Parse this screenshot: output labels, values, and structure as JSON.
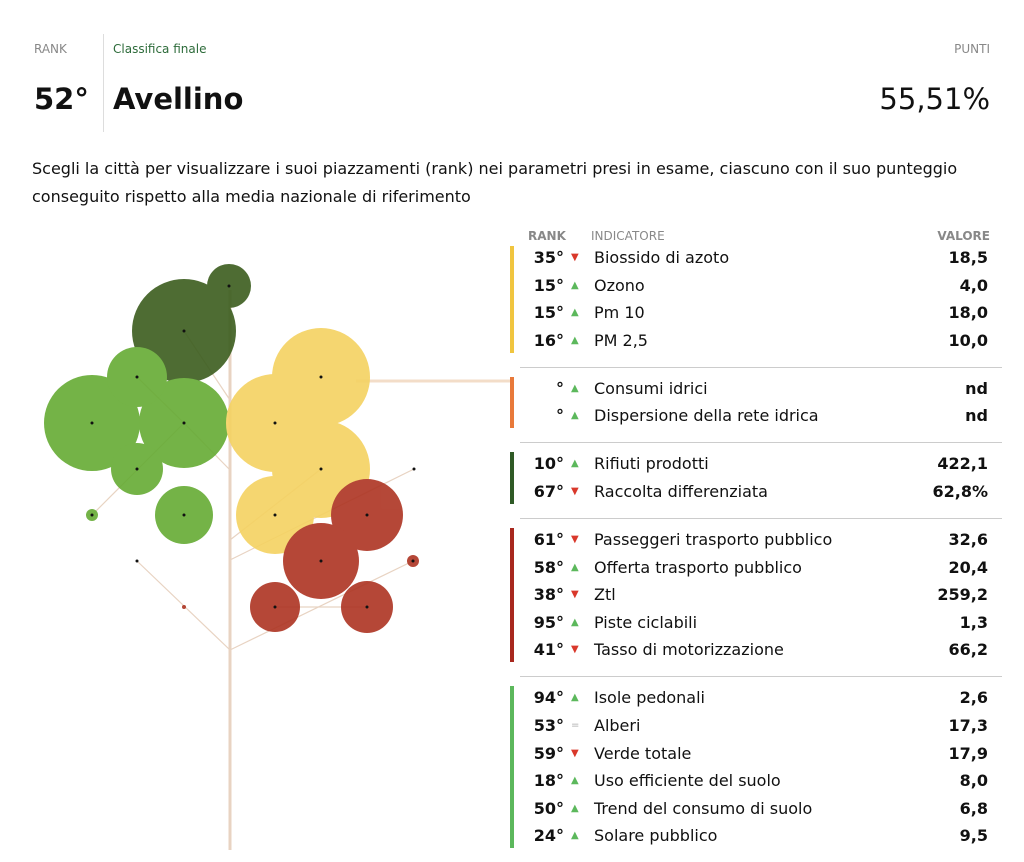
{
  "header": {
    "rank_label": "RANK",
    "subtitle": "Classifica finale",
    "score_label": "PUNTI",
    "rank": "52°",
    "city": "Avellino",
    "score": "55,51%"
  },
  "description": "Scegli la città per visualizzare i suoi piazzamenti (rank) nei parametri presi in esame, ciascuno con il suo punteggio conseguito rispetto alla media nazionale di riferimento",
  "table": {
    "columns": [
      "RANK",
      "INDICATORE",
      "VALORE"
    ],
    "groups": [
      {
        "color": "#f0c53f",
        "rows": [
          {
            "rank": "35°",
            "trend": "down",
            "label": "Biossido di azoto",
            "value": "18,5"
          },
          {
            "rank": "15°",
            "trend": "up",
            "label": "Ozono",
            "value": "4,0"
          },
          {
            "rank": "15°",
            "trend": "up",
            "label": "Pm 10",
            "value": "18,0"
          },
          {
            "rank": "16°",
            "trend": "up",
            "label": "PM 2,5",
            "value": "10,0"
          }
        ]
      },
      {
        "color": "#e8793a",
        "rows": [
          {
            "rank": "°",
            "trend": "up",
            "label": "Consumi idrici",
            "value": "nd"
          },
          {
            "rank": "°",
            "trend": "up",
            "label": "Dispersione della rete idrica",
            "value": "nd"
          }
        ]
      },
      {
        "color": "#2f5a26",
        "rows": [
          {
            "rank": "10°",
            "trend": "up",
            "label": "Rifiuti prodotti",
            "value": "422,1"
          },
          {
            "rank": "67°",
            "trend": "down",
            "label": "Raccolta differenziata",
            "value": "62,8%"
          }
        ]
      },
      {
        "color": "#a8281e",
        "rows": [
          {
            "rank": "61°",
            "trend": "down",
            "label": "Passeggeri trasporto pubblico",
            "value": "32,6"
          },
          {
            "rank": "58°",
            "trend": "up",
            "label": "Offerta trasporto pubblico",
            "value": "20,4"
          },
          {
            "rank": "38°",
            "trend": "down",
            "label": "Ztl",
            "value": "259,2"
          },
          {
            "rank": "95°",
            "trend": "up",
            "label": "Piste ciclabili",
            "value": "1,3"
          },
          {
            "rank": "41°",
            "trend": "down",
            "label": "Tasso di motorizzazione",
            "value": "66,2"
          }
        ]
      },
      {
        "color": "#5cb85c",
        "rows": [
          {
            "rank": "94°",
            "trend": "up",
            "label": "Isole pedonali",
            "value": "2,6"
          },
          {
            "rank": "53°",
            "trend": "equal",
            "label": "Alberi",
            "value": "17,3"
          },
          {
            "rank": "59°",
            "trend": "down",
            "label": "Verde totale",
            "value": "17,9"
          },
          {
            "rank": "18°",
            "trend": "up",
            "label": "Uso efficiente del suolo",
            "value": "8,0"
          },
          {
            "rank": "50°",
            "trend": "up",
            "label": "Trend del consumo di suolo",
            "value": "6,8"
          },
          {
            "rank": "24°",
            "trend": "up",
            "label": "Solare pubblico",
            "value": "9,5"
          }
        ]
      }
    ]
  }
}
